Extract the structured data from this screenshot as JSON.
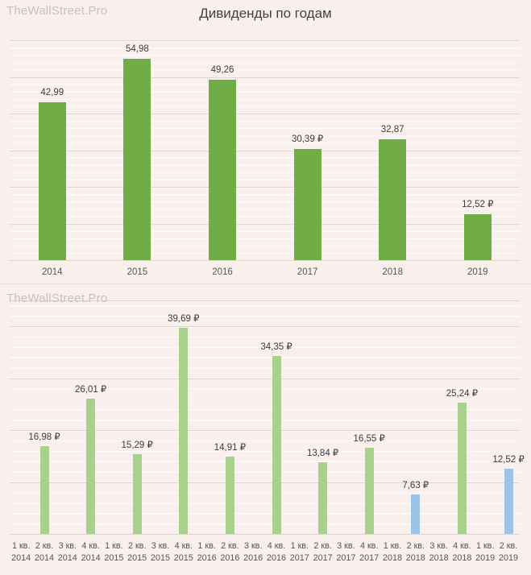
{
  "watermark": "TheWallStreet.Pro",
  "colors": {
    "background": "#f9f0ed",
    "bar_green": "#70ad47",
    "bar_light_green": "#a9d18e",
    "bar_blue": "#9dc3e6",
    "gridline": "#dcd5d2",
    "title_text": "#46403e",
    "value_label_text": "#3f3b39",
    "axis_label_text": "#595451",
    "watermark_text": "#c8c1be"
  },
  "chart_data": [
    {
      "type": "bar",
      "title": "Дивиденды по годам",
      "xlabel": "",
      "ylabel": "",
      "ylim": [
        0,
        60
      ],
      "gridlines": [
        0,
        10,
        20,
        30,
        40,
        50,
        60
      ],
      "grid": "on",
      "legend": "none",
      "categories": [
        "2014",
        "2015",
        "2016",
        "2017",
        "2018",
        "2019"
      ],
      "points": [
        {
          "category": "2014",
          "value": 42.99,
          "label": "42,99",
          "color": "green"
        },
        {
          "category": "2015",
          "value": 54.98,
          "label": "54,98",
          "color": "green"
        },
        {
          "category": "2016",
          "value": 49.26,
          "label": "49,26",
          "color": "green"
        },
        {
          "category": "2017",
          "value": 30.39,
          "label": "30,39 ₽",
          "color": "green"
        },
        {
          "category": "2018",
          "value": 32.87,
          "label": "32,87",
          "color": "green"
        },
        {
          "category": "2019",
          "value": 12.52,
          "label": "12,52 ₽",
          "color": "green"
        }
      ]
    },
    {
      "type": "bar",
      "title": "",
      "xlabel": "",
      "ylabel": "",
      "ylim": [
        0,
        45
      ],
      "gridlines": [
        0,
        10,
        20,
        30,
        40,
        45
      ],
      "grid": "on",
      "legend": "none",
      "points": [
        {
          "category": "1 кв.",
          "category_line2": "2014",
          "value": null,
          "label": null,
          "color": null
        },
        {
          "category": "2 кв.",
          "category_line2": "2014",
          "value": 16.98,
          "label": "16,98 ₽",
          "color": "light_green"
        },
        {
          "category": "3 кв.",
          "category_line2": "2014",
          "value": null,
          "label": null,
          "color": null
        },
        {
          "category": "4 кв.",
          "category_line2": "2014",
          "value": 26.01,
          "label": "26,01 ₽",
          "color": "light_green"
        },
        {
          "category": "1 кв.",
          "category_line2": "2015",
          "value": null,
          "label": null,
          "color": null
        },
        {
          "category": "2 кв.",
          "category_line2": "2015",
          "value": 15.29,
          "label": "15,29 ₽",
          "color": "light_green"
        },
        {
          "category": "3 кв.",
          "category_line2": "2015",
          "value": null,
          "label": null,
          "color": null
        },
        {
          "category": "4 кв.",
          "category_line2": "2015",
          "value": 39.69,
          "label": "39,69 ₽",
          "color": "light_green"
        },
        {
          "category": "1 кв.",
          "category_line2": "2016",
          "value": null,
          "label": null,
          "color": null
        },
        {
          "category": "2 кв.",
          "category_line2": "2016",
          "value": 14.91,
          "label": "14,91 ₽",
          "color": "light_green"
        },
        {
          "category": "3 кв.",
          "category_line2": "2016",
          "value": null,
          "label": null,
          "color": null
        },
        {
          "category": "4 кв.",
          "category_line2": "2016",
          "value": 34.35,
          "label": "34,35 ₽",
          "color": "light_green"
        },
        {
          "category": "1 кв.",
          "category_line2": "2017",
          "value": null,
          "label": null,
          "color": null
        },
        {
          "category": "2 кв.",
          "category_line2": "2017",
          "value": 13.84,
          "label": "13,84 ₽",
          "color": "light_green"
        },
        {
          "category": "3 кв.",
          "category_line2": "2017",
          "value": null,
          "label": null,
          "color": null
        },
        {
          "category": "4 кв.",
          "category_line2": "2017",
          "value": 16.55,
          "label": "16,55 ₽",
          "color": "light_green"
        },
        {
          "category": "1 кв.",
          "category_line2": "2018",
          "value": null,
          "label": null,
          "color": null
        },
        {
          "category": "2 кв.",
          "category_line2": "2018",
          "value": 7.63,
          "label": "7,63 ₽",
          "color": "blue"
        },
        {
          "category": "3 кв.",
          "category_line2": "2018",
          "value": null,
          "label": null,
          "color": null
        },
        {
          "category": "4 кв.",
          "category_line2": "2018",
          "value": 25.24,
          "label": "25,24 ₽",
          "color": "light_green"
        },
        {
          "category": "1 кв.",
          "category_line2": "2019",
          "value": null,
          "label": null,
          "color": null
        },
        {
          "category": "2 кв.",
          "category_line2": "2019",
          "value": 12.52,
          "label": "12,52 ₽",
          "color": "blue"
        }
      ]
    }
  ]
}
